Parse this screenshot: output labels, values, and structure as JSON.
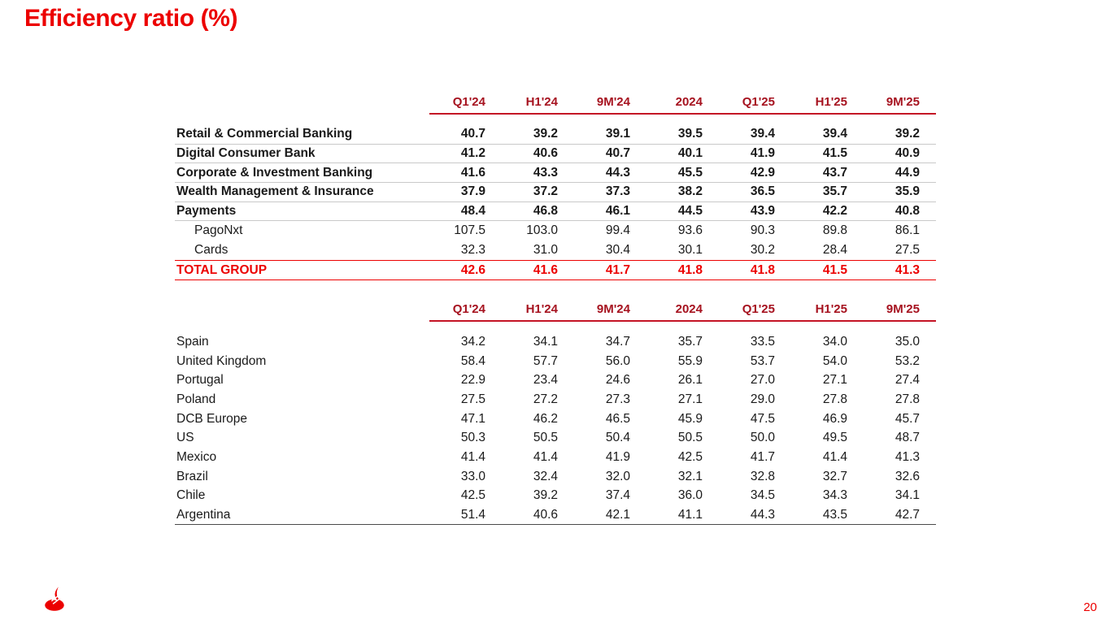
{
  "slide": {
    "title": "Efficiency ratio (%)",
    "page_number": "20"
  },
  "colors": {
    "brand_red": "#EC0000",
    "header_red": "#A6121F",
    "header_line_red": "#C41425",
    "body_text": "#1A1A1A",
    "row_separator_gray": "#C9C9C9",
    "table_bottom_line": "#4A4A4A"
  },
  "icons": {
    "logo": "santander-flame-icon"
  },
  "chart_data": [
    {
      "type": "table",
      "name": "efficiency-ratio-by-segment",
      "columns": [
        "Q1'24",
        "H1'24",
        "9M'24",
        "2024",
        "Q1'25",
        "H1'25",
        "9M'25"
      ],
      "rows": [
        {
          "label": "Retail & Commercial Banking",
          "style": "bold",
          "values": [
            "40.7",
            "39.2",
            "39.1",
            "39.5",
            "39.4",
            "39.4",
            "39.2"
          ]
        },
        {
          "label": "Digital Consumer Bank",
          "style": "bold",
          "values": [
            "41.2",
            "40.6",
            "40.7",
            "40.1",
            "41.9",
            "41.5",
            "40.9"
          ]
        },
        {
          "label": "Corporate & Investment Banking",
          "style": "bold",
          "values": [
            "41.6",
            "43.3",
            "44.3",
            "45.5",
            "42.9",
            "43.7",
            "44.9"
          ]
        },
        {
          "label": "Wealth Management & Insurance",
          "style": "bold",
          "values": [
            "37.9",
            "37.2",
            "37.3",
            "38.2",
            "36.5",
            "35.7",
            "35.9"
          ]
        },
        {
          "label": "Payments",
          "style": "bold",
          "values": [
            "48.4",
            "46.8",
            "46.1",
            "44.5",
            "43.9",
            "42.2",
            "40.8"
          ]
        },
        {
          "label": "PagoNxt",
          "style": "indent",
          "values": [
            "107.5",
            "103.0",
            "99.4",
            "93.6",
            "90.3",
            "89.8",
            "86.1"
          ]
        },
        {
          "label": "Cards",
          "style": "indent",
          "values": [
            "32.3",
            "31.0",
            "30.4",
            "30.1",
            "30.2",
            "28.4",
            "27.5"
          ]
        },
        {
          "label": "TOTAL GROUP",
          "style": "total",
          "values": [
            "42.6",
            "41.6",
            "41.7",
            "41.8",
            "41.8",
            "41.5",
            "41.3"
          ]
        }
      ]
    },
    {
      "type": "table",
      "name": "efficiency-ratio-by-country",
      "columns": [
        "Q1'24",
        "H1'24",
        "9M'24",
        "2024",
        "Q1'25",
        "H1'25",
        "9M'25"
      ],
      "rows": [
        {
          "label": "Spain",
          "style": "",
          "values": [
            "34.2",
            "34.1",
            "34.7",
            "35.7",
            "33.5",
            "34.0",
            "35.0"
          ]
        },
        {
          "label": "United Kingdom",
          "style": "",
          "values": [
            "58.4",
            "57.7",
            "56.0",
            "55.9",
            "53.7",
            "54.0",
            "53.2"
          ]
        },
        {
          "label": "Portugal",
          "style": "",
          "values": [
            "22.9",
            "23.4",
            "24.6",
            "26.1",
            "27.0",
            "27.1",
            "27.4"
          ]
        },
        {
          "label": "Poland",
          "style": "",
          "values": [
            "27.5",
            "27.2",
            "27.3",
            "27.1",
            "29.0",
            "27.8",
            "27.8"
          ]
        },
        {
          "label": "DCB Europe",
          "style": "",
          "values": [
            "47.1",
            "46.2",
            "46.5",
            "45.9",
            "47.5",
            "46.9",
            "45.7"
          ]
        },
        {
          "label": "US",
          "style": "",
          "values": [
            "50.3",
            "50.5",
            "50.4",
            "50.5",
            "50.0",
            "49.5",
            "48.7"
          ]
        },
        {
          "label": "Mexico",
          "style": "",
          "values": [
            "41.4",
            "41.4",
            "41.9",
            "42.5",
            "41.7",
            "41.4",
            "41.3"
          ]
        },
        {
          "label": "Brazil",
          "style": "",
          "values": [
            "33.0",
            "32.4",
            "32.0",
            "32.1",
            "32.8",
            "32.7",
            "32.6"
          ]
        },
        {
          "label": "Chile",
          "style": "",
          "values": [
            "42.5",
            "39.2",
            "37.4",
            "36.0",
            "34.5",
            "34.3",
            "34.1"
          ]
        },
        {
          "label": "Argentina",
          "style": "",
          "values": [
            "51.4",
            "40.6",
            "42.1",
            "41.1",
            "44.3",
            "43.5",
            "42.7"
          ]
        }
      ]
    }
  ]
}
